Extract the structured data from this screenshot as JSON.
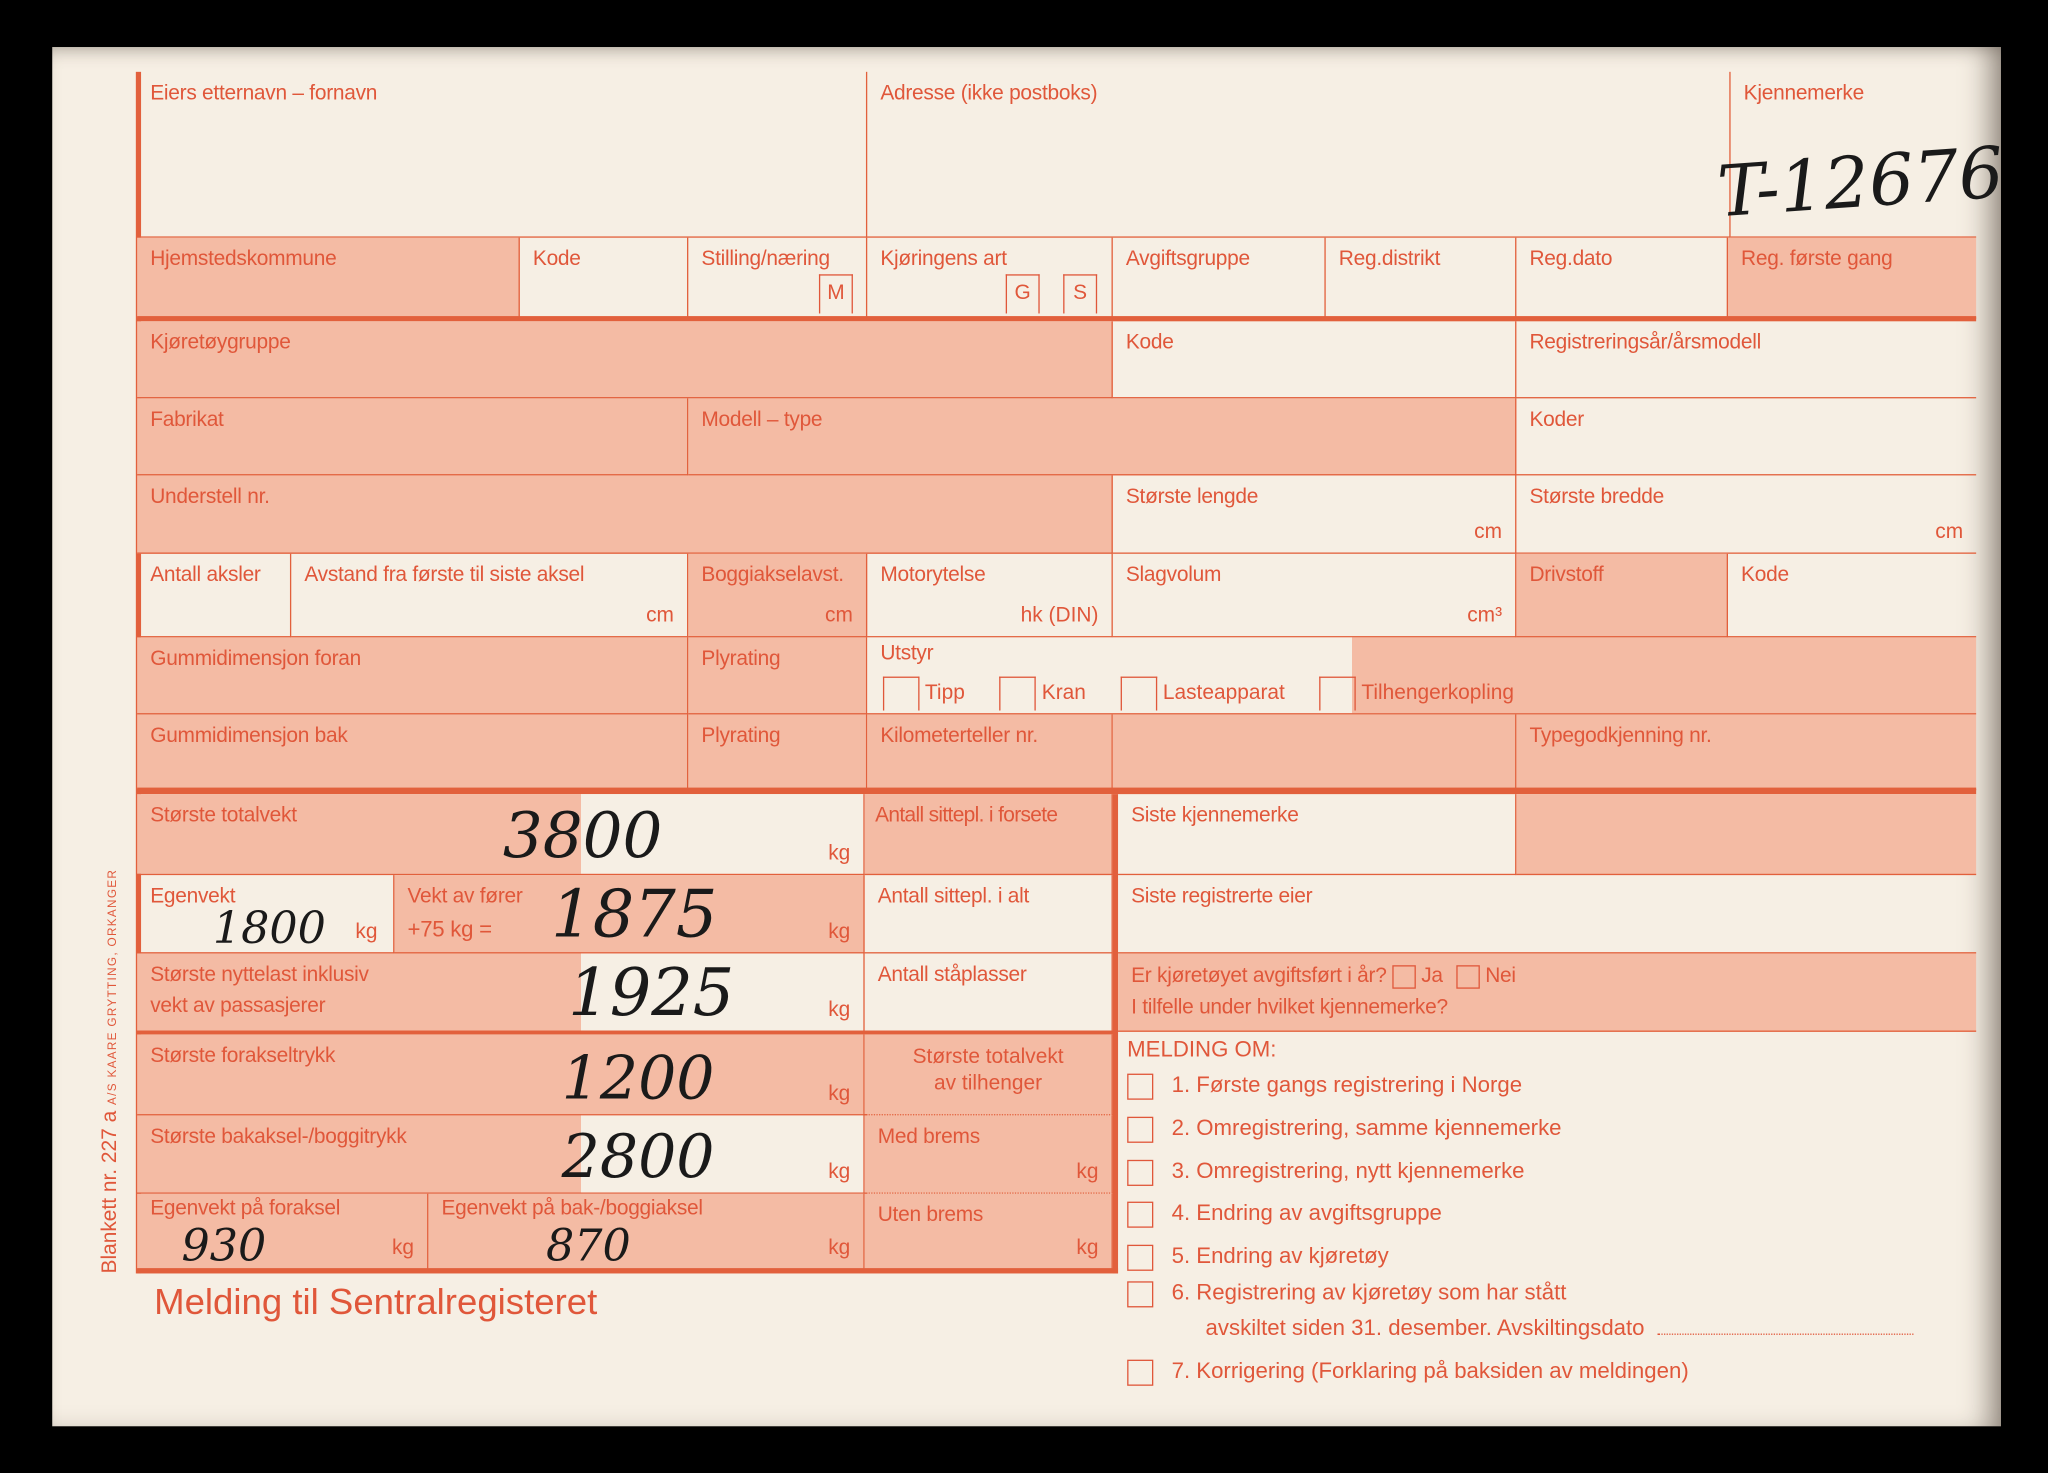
{
  "form": {
    "eier": "Eiers etternavn – fornavn",
    "adresse": "Adresse (ikke postboks)",
    "kjennemerke": "Kjennemerke",
    "kjennemerke_value": "T-12676",
    "hjemsted": "Hjemstedskommune",
    "kode": "Kode",
    "stilling": "Stilling/næring",
    "stilling_box": "M",
    "kjoringens_art": "Kjøringens art",
    "box_g": "G",
    "box_s": "S",
    "avgiftsgruppe": "Avgiftsgruppe",
    "reg_distrikt": "Reg.distrikt",
    "reg_dato": "Reg.dato",
    "reg_forste": "Reg. første gang",
    "kjoretoygruppe": "Kjøretøygruppe",
    "reg_aar": "Registreringsår/årsmodell",
    "fabrikat": "Fabrikat",
    "modell": "Modell – type",
    "koder": "Koder",
    "understell": "Understell nr.",
    "lengde": "Største lengde",
    "bredde": "Største bredde",
    "cm": "cm",
    "aksler": "Antall aksler",
    "avstand": "Avstand fra første til siste aksel",
    "boggi": "Boggiakselavst.",
    "motor": "Motorytelse",
    "hk": "hk (DIN)",
    "slagvolum": "Slagvolum",
    "cm3": "cm³",
    "drivstoff": "Drivstoff",
    "gum_foran": "Gummidimensjon foran",
    "plyrating": "Plyrating",
    "utstyr": "Utstyr",
    "tipp": "Tipp",
    "kran": "Kran",
    "laste": "Lasteapparat",
    "tilhenger": "Tilhengerkopling",
    "gum_bak": "Gummidimensjon bak",
    "km": "Kilometerteller nr.",
    "typegod": "Typegodkjenning nr.",
    "kg": "kg",
    "totalvekt": "Største totalvekt",
    "totalvekt_v": "3800",
    "egenvekt": "Egenvekt",
    "egenvekt_v": "1800",
    "forer1": "Vekt av fører",
    "forer2": "+75 kg =",
    "forer_v": "1875",
    "nytte1": "Største nyttelast inklusiv",
    "nytte2": "vekt av passasjerer",
    "nytte_v": "1925",
    "foraksel": "Største forakseltrykk",
    "foraksel_v": "1200",
    "bakaksel": "Største bakaksel-/boggitrykk",
    "bakaksel_v": "2800",
    "ev_for": "Egenvekt på foraksel",
    "ev_for_v": "930",
    "ev_bak": "Egenvekt på bak-/boggiaksel",
    "ev_bak_v": "870",
    "sete_for": "Antall sittepl. i forsete",
    "sete_alt": "Antall sittepl. i alt",
    "staa": "Antall ståplasser",
    "tilh1": "Største totalvekt",
    "tilh2": "av tilhenger",
    "med_brems": "Med brems",
    "uten_brems": "Uten brems",
    "siste_kj": "Siste kjennemerke",
    "siste_eier": "Siste registrerte eier",
    "avgift_q": "Er kjøretøyet avgiftsført i år?",
    "ja": "Ja",
    "nei": "Nei",
    "tilfelle": "I tilfelle under hvilket kjennemerke?",
    "melding_om": "MELDING OM:",
    "items": [
      "1. Første gangs registrering i Norge",
      "2. Omregistrering, samme kjennemerke",
      "3. Omregistrering, nytt kjennemerke",
      "4. Endring av avgiftsgruppe",
      "5. Endring av kjøretøy",
      "6. Registrering av kjøretøy som har stått",
      "7. Korrigering (Forklaring på baksiden av meldingen)"
    ],
    "item6b": "avskiltet siden 31. desember. Avskiltingsdato",
    "title": "Melding til Sentralregisteret",
    "blankett": "Blankett nr. 227 a",
    "printer": "A/S KAARE GRYTTING, ORKANGER"
  },
  "colors": {
    "ink": "#e0573a",
    "shade": "#f4bba4",
    "paper": "#f6efe4"
  }
}
